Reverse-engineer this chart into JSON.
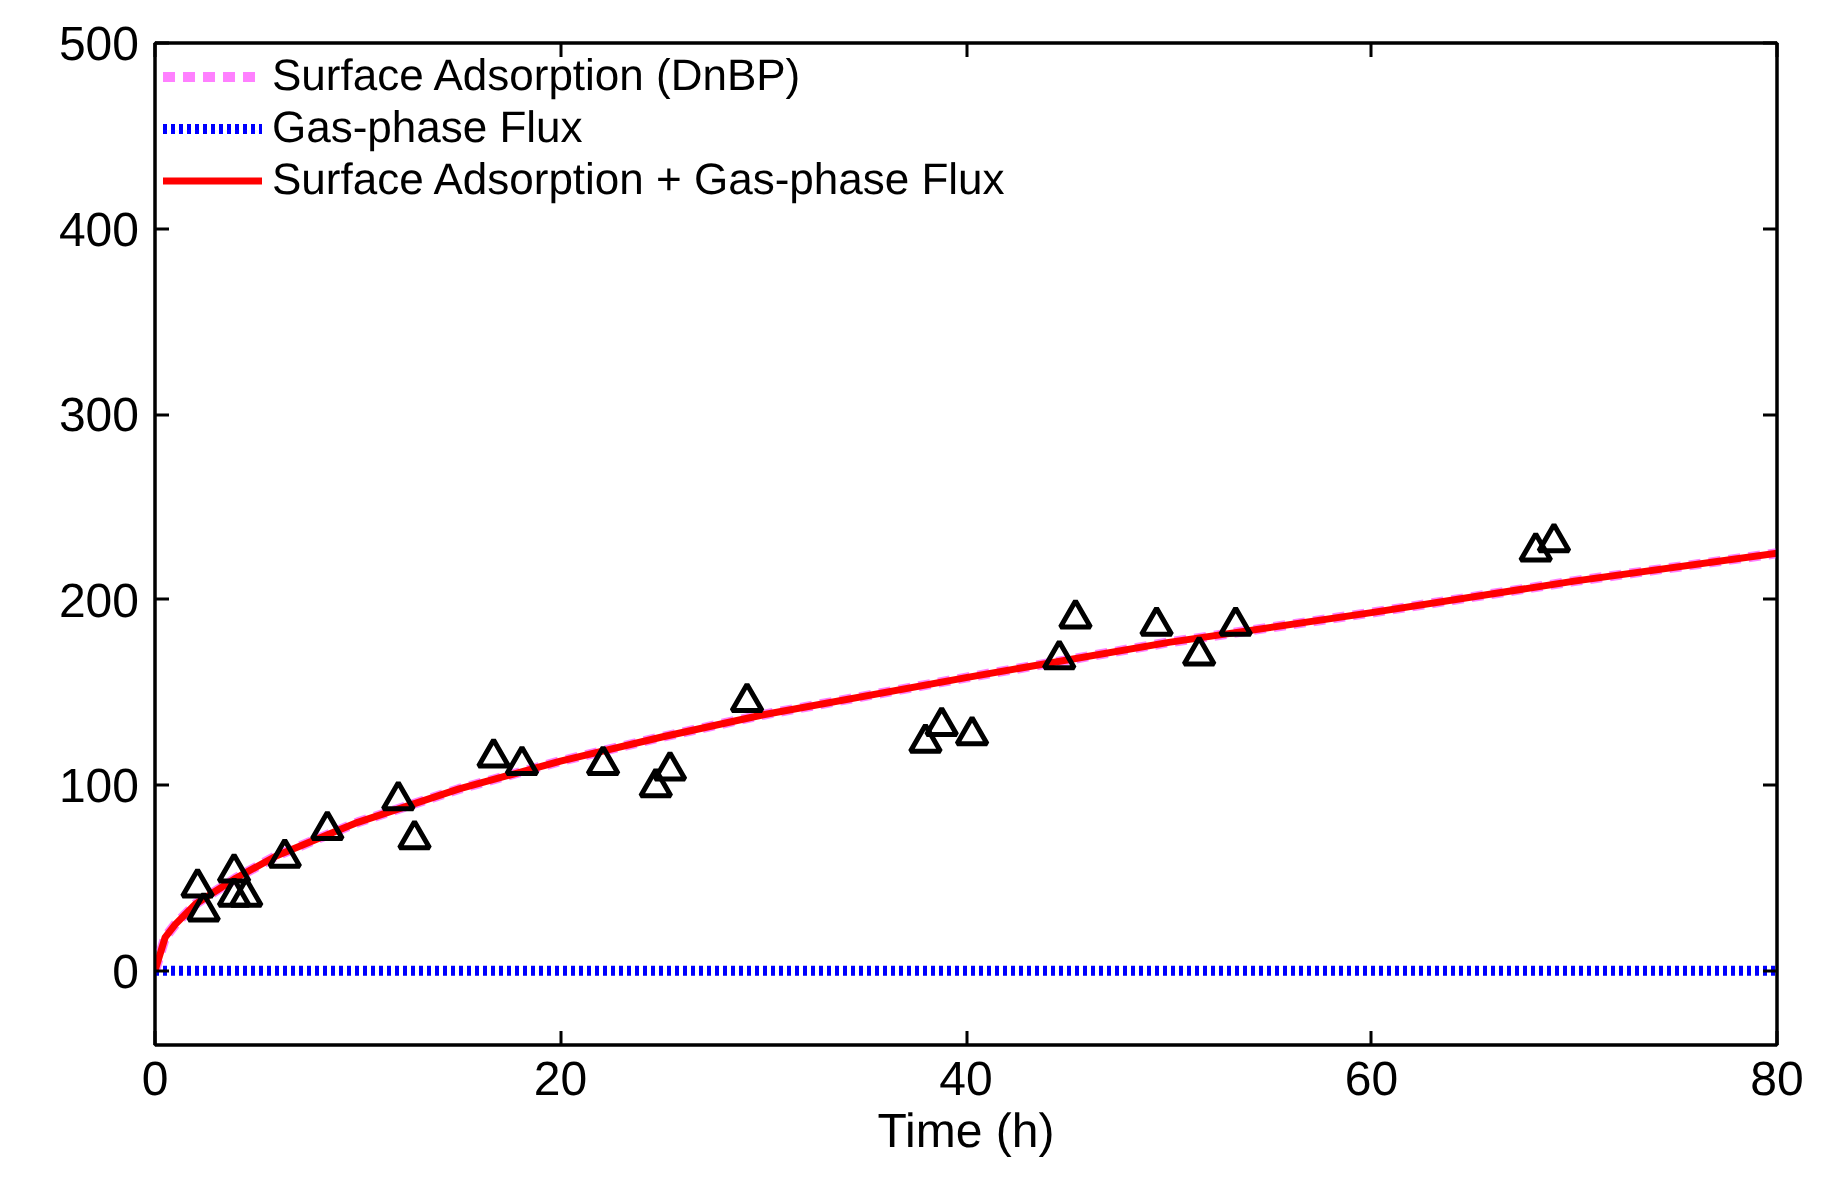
{
  "chart_data": {
    "type": "line",
    "xlabel": "Time (h)",
    "xlim": [
      0,
      80
    ],
    "xticks": [
      0,
      20,
      40,
      60,
      80
    ],
    "ylim": [
      -40,
      500
    ],
    "yticks": [
      0,
      100,
      200,
      300,
      400,
      500
    ],
    "grid": false,
    "legend": "top left",
    "series": [
      {
        "name": "Surface Adsorption (DnBP)",
        "color": "#ff80ff",
        "line_style": "dashed",
        "x": [
          0,
          0.5,
          1,
          2,
          4,
          6,
          8,
          10,
          15,
          20,
          25,
          30,
          40,
          50,
          60,
          70,
          80
        ],
        "values": [
          0,
          18,
          25,
          36,
          50,
          62,
          71,
          80,
          98,
          113,
          126,
          138,
          158,
          177,
          193,
          210,
          225
        ]
      },
      {
        "name": "Gas-phase Flux",
        "color": "#0000ff",
        "line_style": "dotted",
        "x": [
          0,
          80
        ],
        "values": [
          0,
          0
        ]
      },
      {
        "name": "Surface Adsorption + Gas-phase Flux",
        "color": "#ff0000",
        "line_style": "solid",
        "x": [
          0,
          0.5,
          1,
          2,
          4,
          6,
          8,
          10,
          15,
          20,
          25,
          30,
          40,
          50,
          60,
          70,
          80
        ],
        "values": [
          0,
          18,
          25,
          36,
          50,
          62,
          71,
          80,
          98,
          113,
          126,
          138,
          158,
          177,
          193,
          210,
          225
        ]
      },
      {
        "type": "scatter",
        "marker": "triangle",
        "color": "#000000",
        "x": [
          2.1,
          2.4,
          3.9,
          3.9,
          4.5,
          6.4,
          8.5,
          12.0,
          12.8,
          16.7,
          18.1,
          22.1,
          24.7,
          25.4,
          29.2,
          38.0,
          38.8,
          40.3,
          44.6,
          45.4,
          49.4,
          51.5,
          53.3,
          68.1,
          69.0
        ],
        "values": [
          45,
          32,
          53,
          40,
          40,
          61,
          76,
          92,
          71,
          115,
          111,
          111,
          99,
          108,
          145,
          123,
          132,
          127,
          168,
          190,
          186,
          170,
          186,
          226,
          231
        ]
      }
    ]
  }
}
